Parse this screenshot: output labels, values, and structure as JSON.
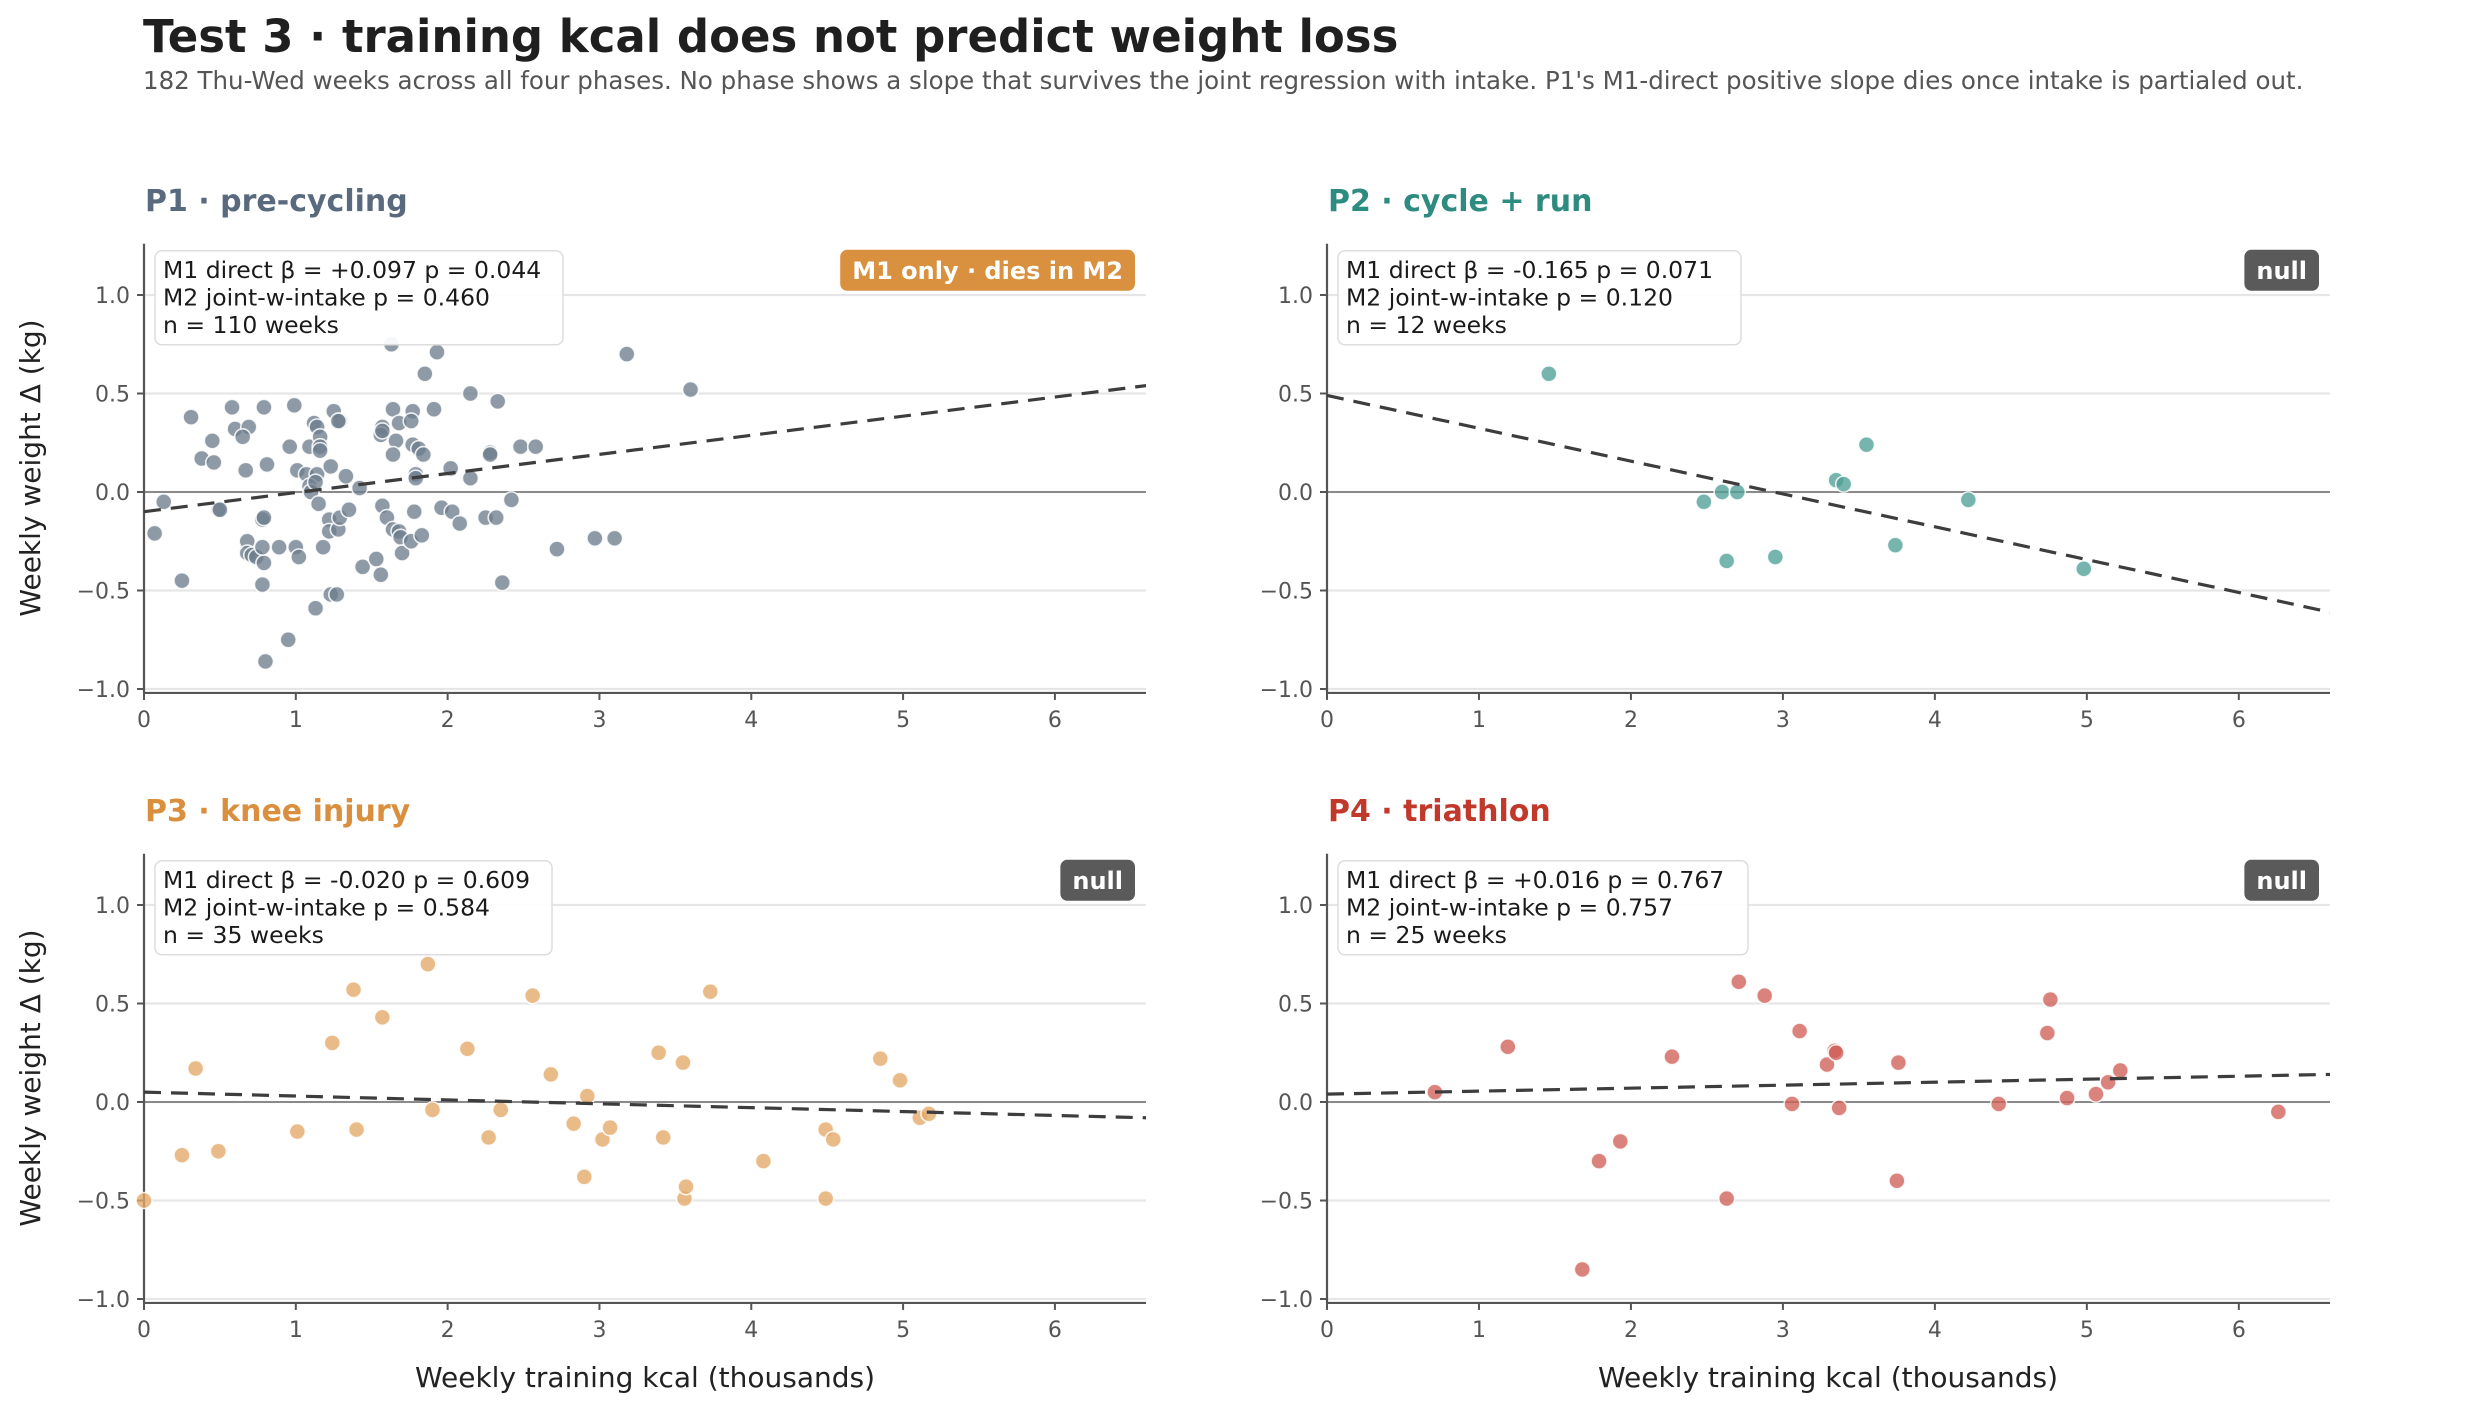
{
  "header": {
    "title": "Test 3 · training kcal does not predict weight loss",
    "subtitle": "182 Thu-Wed weeks across all four phases. No phase shows a slope that survives the joint regression with intake. P1's M1-direct positive slope dies once intake is partialed out."
  },
  "chart_data": {
    "type": "scatter",
    "title": "Test 3 · training kcal does not predict weight loss",
    "xlabel": "Weekly training kcal  (thousands)",
    "ylabel": "Weekly weight Δ  (kg)",
    "xlim": [
      0,
      6.6
    ],
    "ylim": [
      -1.02,
      1.26
    ],
    "xticks": [
      "0",
      "1",
      "2",
      "3",
      "4",
      "5",
      "6"
    ],
    "yticks": [
      "−1.0",
      "−0.5",
      "0.0",
      "0.5",
      "1.0"
    ],
    "grid": "horizontal",
    "reference_line_y": 0,
    "panels": [
      {
        "id": "P1",
        "title": "P1 · pre-cycling",
        "color": "#5a6a7e",
        "point_color": "#6e7d8d",
        "badge": {
          "label": "M1 only · dies in M2",
          "color": "#d99140"
        },
        "annotation": [
          "M1 direct  β = +0.097  p = 0.044",
          "M2 joint-w-intake  p = 0.460",
          "n = 110 weeks"
        ],
        "fit_line": {
          "x": [
            0,
            6.6
          ],
          "y": [
            -0.1,
            0.54
          ]
        },
        "points": [
          [
            0.31,
            0.38
          ],
          [
            0.58,
            0.43
          ],
          [
            0.79,
            0.43
          ],
          [
            0.99,
            0.44
          ],
          [
            0.6,
            0.32
          ],
          [
            0.69,
            0.33
          ],
          [
            0.65,
            0.28
          ],
          [
            0.45,
            0.26
          ],
          [
            0.38,
            0.17
          ],
          [
            0.46,
            0.15
          ],
          [
            0.67,
            0.11
          ],
          [
            0.81,
            0.14
          ],
          [
            0.96,
            0.23
          ],
          [
            1.01,
            0.11
          ],
          [
            1.09,
            0.23
          ],
          [
            1.12,
            0.35
          ],
          [
            1.14,
            0.33
          ],
          [
            1.16,
            0.28
          ],
          [
            1.16,
            0.23
          ],
          [
            1.16,
            0.21
          ],
          [
            1.07,
            0.09
          ],
          [
            1.14,
            0.09
          ],
          [
            1.09,
            0.03
          ],
          [
            1.1,
            0.0
          ],
          [
            1.15,
            -0.06
          ],
          [
            1.25,
            0.41
          ],
          [
            1.29,
            0.36
          ],
          [
            1.23,
            0.13
          ],
          [
            1.33,
            0.08
          ],
          [
            1.42,
            0.02
          ],
          [
            1.64,
            0.42
          ],
          [
            1.77,
            0.41
          ],
          [
            1.91,
            0.42
          ],
          [
            1.57,
            0.33
          ],
          [
            1.56,
            0.29
          ],
          [
            1.68,
            0.35
          ],
          [
            1.76,
            0.36
          ],
          [
            1.66,
            0.26
          ],
          [
            1.64,
            0.19
          ],
          [
            1.77,
            0.24
          ],
          [
            1.81,
            0.22
          ],
          [
            1.84,
            0.19
          ],
          [
            1.79,
            0.09
          ],
          [
            1.79,
            0.07
          ],
          [
            1.85,
            0.6
          ],
          [
            1.93,
            0.71
          ],
          [
            1.63,
            0.75
          ],
          [
            2.15,
            0.5
          ],
          [
            2.33,
            0.46
          ],
          [
            2.02,
            0.12
          ],
          [
            2.15,
            0.07
          ],
          [
            2.28,
            0.2
          ],
          [
            2.28,
            0.19
          ],
          [
            2.48,
            0.23
          ],
          [
            2.58,
            0.23
          ],
          [
            0.13,
            -0.05
          ],
          [
            0.07,
            -0.21
          ],
          [
            0.49,
            -0.09
          ],
          [
            0.5,
            -0.09
          ],
          [
            0.78,
            -0.14
          ],
          [
            0.79,
            -0.13
          ],
          [
            0.25,
            -0.45
          ],
          [
            0.68,
            -0.25
          ],
          [
            0.68,
            -0.31
          ],
          [
            0.71,
            -0.32
          ],
          [
            0.74,
            -0.33
          ],
          [
            0.79,
            -0.36
          ],
          [
            0.78,
            -0.28
          ],
          [
            0.89,
            -0.28
          ],
          [
            1.0,
            -0.28
          ],
          [
            1.02,
            -0.33
          ],
          [
            0.78,
            -0.47
          ],
          [
            0.95,
            -0.75
          ],
          [
            0.8,
            -0.86
          ],
          [
            1.13,
            -0.59
          ],
          [
            1.23,
            -0.52
          ],
          [
            1.27,
            -0.52
          ],
          [
            1.18,
            -0.28
          ],
          [
            1.22,
            -0.14
          ],
          [
            1.22,
            -0.2
          ],
          [
            1.28,
            -0.19
          ],
          [
            1.29,
            -0.13
          ],
          [
            1.35,
            -0.09
          ],
          [
            1.44,
            -0.38
          ],
          [
            1.53,
            -0.34
          ],
          [
            1.56,
            -0.42
          ],
          [
            1.57,
            -0.07
          ],
          [
            1.6,
            -0.13
          ],
          [
            1.64,
            -0.19
          ],
          [
            1.68,
            -0.2
          ],
          [
            1.69,
            -0.23
          ],
          [
            1.7,
            -0.31
          ],
          [
            1.76,
            -0.25
          ],
          [
            1.83,
            -0.22
          ],
          [
            1.78,
            -0.1
          ],
          [
            1.96,
            -0.08
          ],
          [
            2.03,
            -0.1
          ],
          [
            2.08,
            -0.16
          ],
          [
            2.25,
            -0.13
          ],
          [
            2.32,
            -0.13
          ],
          [
            2.42,
            -0.04
          ],
          [
            2.36,
            -0.46
          ],
          [
            2.72,
            -0.29
          ],
          [
            3.18,
            0.7
          ],
          [
            3.6,
            0.52
          ],
          [
            2.97,
            -0.235
          ],
          [
            3.1,
            -0.235
          ],
          [
            1.28,
            0.36
          ],
          [
            1.57,
            0.31
          ],
          [
            1.13,
            0.05
          ]
        ]
      },
      {
        "id": "P2",
        "title": "P2 · cycle + run",
        "color": "#2e8b7f",
        "point_color": "#4f9f97",
        "badge": {
          "label": "null",
          "color": "#5a5a5a"
        },
        "annotation": [
          "M1 direct  β = -0.165  p = 0.071",
          "M2 joint-w-intake  p = 0.120",
          "n = 12 weeks"
        ],
        "fit_line": {
          "x": [
            0,
            6.6
          ],
          "y": [
            0.49,
            -0.61
          ]
        },
        "points": [
          [
            1.46,
            0.6
          ],
          [
            2.48,
            -0.05
          ],
          [
            2.6,
            0.0
          ],
          [
            2.7,
            0.0
          ],
          [
            2.63,
            -0.35
          ],
          [
            2.95,
            -0.33
          ],
          [
            3.35,
            0.06
          ],
          [
            3.4,
            0.04
          ],
          [
            3.55,
            0.24
          ],
          [
            3.74,
            -0.27
          ],
          [
            4.22,
            -0.04
          ],
          [
            4.98,
            -0.39
          ]
        ]
      },
      {
        "id": "P3",
        "title": "P3 · knee injury",
        "color": "#d98f3d",
        "point_color": "#e3a866",
        "badge": {
          "label": "null",
          "color": "#5a5a5a"
        },
        "annotation": [
          "M1 direct  β = -0.020  p = 0.609",
          "M2 joint-w-intake  p = 0.584",
          "n = 35 weeks"
        ],
        "fit_line": {
          "x": [
            0,
            6.6
          ],
          "y": [
            0.05,
            -0.08
          ]
        },
        "points": [
          [
            0.0,
            -0.5
          ],
          [
            0.25,
            -0.27
          ],
          [
            0.34,
            0.17
          ],
          [
            0.49,
            -0.25
          ],
          [
            1.01,
            -0.15
          ],
          [
            1.24,
            0.3
          ],
          [
            1.38,
            0.57
          ],
          [
            1.4,
            -0.14
          ],
          [
            1.57,
            0.43
          ],
          [
            1.87,
            0.7
          ],
          [
            1.9,
            -0.04
          ],
          [
            2.13,
            0.27
          ],
          [
            2.27,
            -0.18
          ],
          [
            2.35,
            -0.04
          ],
          [
            2.56,
            0.54
          ],
          [
            2.68,
            0.14
          ],
          [
            2.83,
            -0.11
          ],
          [
            2.9,
            -0.38
          ],
          [
            2.92,
            0.03
          ],
          [
            3.02,
            -0.19
          ],
          [
            3.07,
            -0.13
          ],
          [
            3.39,
            0.25
          ],
          [
            3.42,
            -0.18
          ],
          [
            3.55,
            0.2
          ],
          [
            3.56,
            -0.49
          ],
          [
            3.57,
            -0.43
          ],
          [
            3.73,
            0.56
          ],
          [
            4.08,
            -0.3
          ],
          [
            4.49,
            -0.49
          ],
          [
            4.49,
            -0.14
          ],
          [
            4.54,
            -0.19
          ],
          [
            4.85,
            0.22
          ],
          [
            4.98,
            0.11
          ],
          [
            5.11,
            -0.08
          ],
          [
            5.17,
            -0.06
          ]
        ]
      },
      {
        "id": "P4",
        "title": "P4 · triathlon",
        "color": "#c0392b",
        "point_color": "#cf5f57",
        "badge": {
          "label": "null",
          "color": "#5a5a5a"
        },
        "annotation": [
          "M1 direct  β = +0.016  p = 0.767",
          "M2 joint-w-intake  p = 0.757",
          "n = 25 weeks"
        ],
        "fit_line": {
          "x": [
            0,
            6.6
          ],
          "y": [
            0.04,
            0.14
          ]
        },
        "points": [
          [
            0.71,
            0.05
          ],
          [
            1.19,
            0.28
          ],
          [
            1.68,
            -0.85
          ],
          [
            1.79,
            -0.3
          ],
          [
            1.93,
            -0.2
          ],
          [
            2.27,
            0.23
          ],
          [
            2.63,
            -0.49
          ],
          [
            2.71,
            0.61
          ],
          [
            2.88,
            0.54
          ],
          [
            3.06,
            -0.01
          ],
          [
            3.11,
            0.36
          ],
          [
            3.29,
            0.19
          ],
          [
            3.34,
            0.26
          ],
          [
            3.37,
            -0.03
          ],
          [
            3.75,
            -0.4
          ],
          [
            3.76,
            0.2
          ],
          [
            4.42,
            -0.01
          ],
          [
            4.74,
            0.35
          ],
          [
            4.76,
            0.52
          ],
          [
            4.87,
            0.02
          ],
          [
            5.06,
            0.04
          ],
          [
            5.14,
            0.1
          ],
          [
            5.22,
            0.16
          ],
          [
            6.26,
            -0.05
          ],
          [
            3.35,
            0.25
          ]
        ]
      }
    ]
  }
}
